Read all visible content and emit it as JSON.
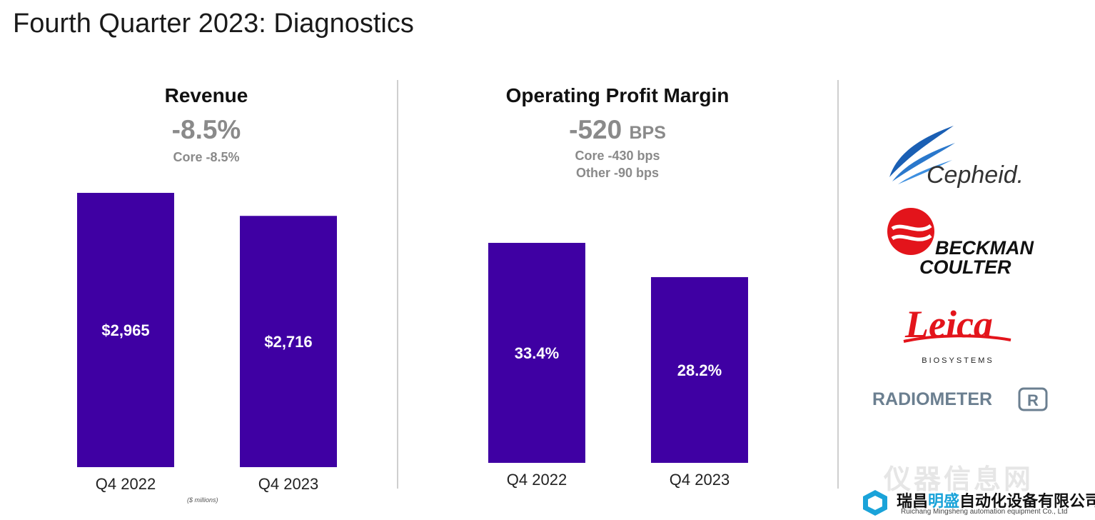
{
  "page_title": "Fourth Quarter 2023: Diagnostics",
  "colors": {
    "bar": "#3f00a3",
    "headline": "#8a8a8a",
    "divider": "#cfcfcf"
  },
  "revenue_panel": {
    "title": "Revenue",
    "headline": "-8.5%",
    "sub1": "Core -8.5%",
    "footnote": "($ millions)"
  },
  "margin_panel": {
    "title": "Operating Profit Margin",
    "headline_value": "-520",
    "headline_unit": "BPS",
    "sub1": "Core -430 bps",
    "sub2": "Other -90 bps"
  },
  "chart_data": [
    {
      "type": "bar",
      "categories": [
        "Q4 2022",
        "Q4 2023"
      ],
      "values": [
        2965,
        2716
      ],
      "data_labels": [
        "$2,965",
        "$2,716"
      ],
      "title": "Revenue"
    },
    {
      "type": "bar",
      "categories": [
        "Q4 2022",
        "Q4 2023"
      ],
      "values": [
        33.4,
        28.2
      ],
      "data_labels": [
        "33.4%",
        "28.2%"
      ],
      "title": "Operating Profit Margin"
    }
  ],
  "logos": {
    "cepheid": "Cepheid.",
    "beckman_line1": "BECKMAN",
    "beckman_line2": "COULTER",
    "leica": "Leica",
    "leica_sub": "BIOSYSTEMS",
    "radiometer": "RADIOMETER",
    "radiometer_mark": "R"
  },
  "watermark": {
    "site": "仪器信息网",
    "company_a": "瑞昌",
    "company_b": "明盛",
    "company_c": "自动化设备有限公司",
    "company_en": "Ruichang Mingsheng automation equipment Co., Ltd"
  }
}
